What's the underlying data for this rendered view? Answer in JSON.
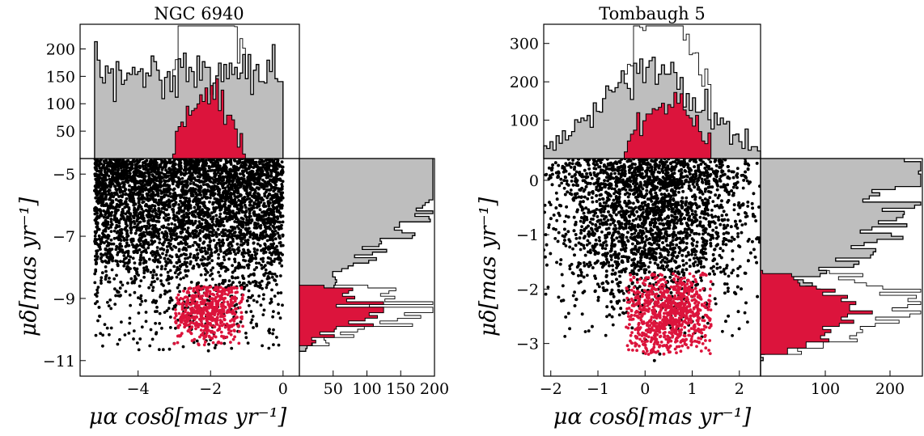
{
  "chart_data": [
    {
      "type": "scatter",
      "title": "NGC 6940",
      "xlabel": "μα cosδ[mas yr⁻¹]",
      "ylabel": "μδ[mas yr⁻¹]",
      "xlim": [
        -5.6,
        0.45
      ],
      "ylim": [
        -11.5,
        -4.5
      ],
      "xticks": [
        -4,
        -2,
        0
      ],
      "yticks": [
        -5,
        -7,
        -9,
        -11
      ],
      "top_hist": {
        "ylim": [
          0,
          245
        ],
        "yticks": [
          50,
          100,
          150,
          200
        ]
      },
      "right_hist": {
        "xlim": [
          0,
          200
        ],
        "xticks": [
          50,
          100,
          150,
          200
        ]
      },
      "field_region": {
        "x": [
          -5.2,
          0.0
        ],
        "y": [
          -10.7,
          -4.5
        ]
      },
      "members": {
        "x_center": -2.05,
        "y_center": -9.35,
        "x_range": [
          -3.0,
          -1.1
        ],
        "y_range": [
          -10.5,
          -8.6
        ]
      },
      "colors": {
        "field": "#000000",
        "member": "#dc143c",
        "hist_fill": "#bebebe"
      }
    },
    {
      "type": "scatter",
      "title": "Tombaugh 5",
      "xlabel": "μα cosδ[mas yr⁻¹]",
      "ylabel": "μδ[mas yr⁻¹]",
      "xlim": [
        -2.15,
        2.45
      ],
      "ylim": [
        -3.6,
        0.4
      ],
      "xticks": [
        -2,
        -1,
        0,
        1,
        2
      ],
      "yticks": [
        0,
        -1,
        -2,
        -3
      ],
      "top_hist": {
        "ylim": [
          0,
          350
        ],
        "yticks": [
          100,
          200,
          300
        ]
      },
      "right_hist": {
        "xlim": [
          0,
          250
        ],
        "xticks": [
          100,
          200
        ]
      },
      "field_region": {
        "x": [
          -2.15,
          2.45
        ],
        "y": [
          -3.6,
          0.4
        ]
      },
      "members": {
        "x_center": 0.5,
        "y_center": -2.45,
        "x_range": [
          -0.4,
          1.4
        ],
        "y_range": [
          -3.2,
          -1.7
        ]
      },
      "colors": {
        "field": "#000000",
        "member": "#dc143c",
        "hist_fill": "#bebebe"
      }
    }
  ]
}
